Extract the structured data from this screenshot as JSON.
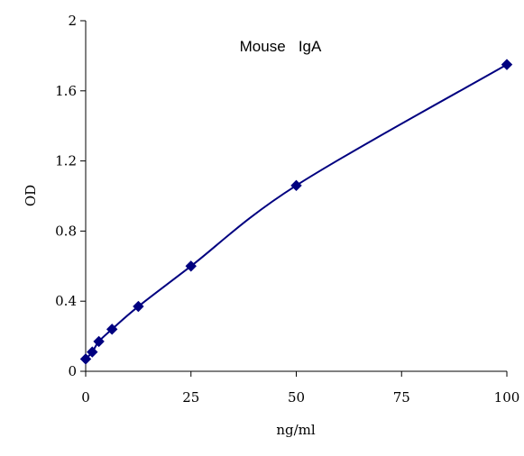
{
  "chart_data": {
    "type": "scatter",
    "title": "Mouse   IgA",
    "xlabel": "ng/ml",
    "ylabel": "OD",
    "xlim": [
      0,
      100
    ],
    "ylim": [
      0,
      2
    ],
    "x_ticks": [
      "0",
      "25",
      "50",
      "75",
      "100"
    ],
    "y_ticks": [
      "0",
      "0.4",
      "0.8",
      "1.2",
      "1.6",
      "2"
    ],
    "grid": false,
    "legend": "none",
    "series": [
      {
        "x": [
          0,
          1.56,
          3.13,
          6.25,
          12.5,
          25,
          50,
          100
        ],
        "y": [
          0.07,
          0.11,
          0.17,
          0.24,
          0.37,
          0.6,
          1.06,
          1.75
        ],
        "smooth_line": true,
        "color": "#000080"
      }
    ]
  }
}
